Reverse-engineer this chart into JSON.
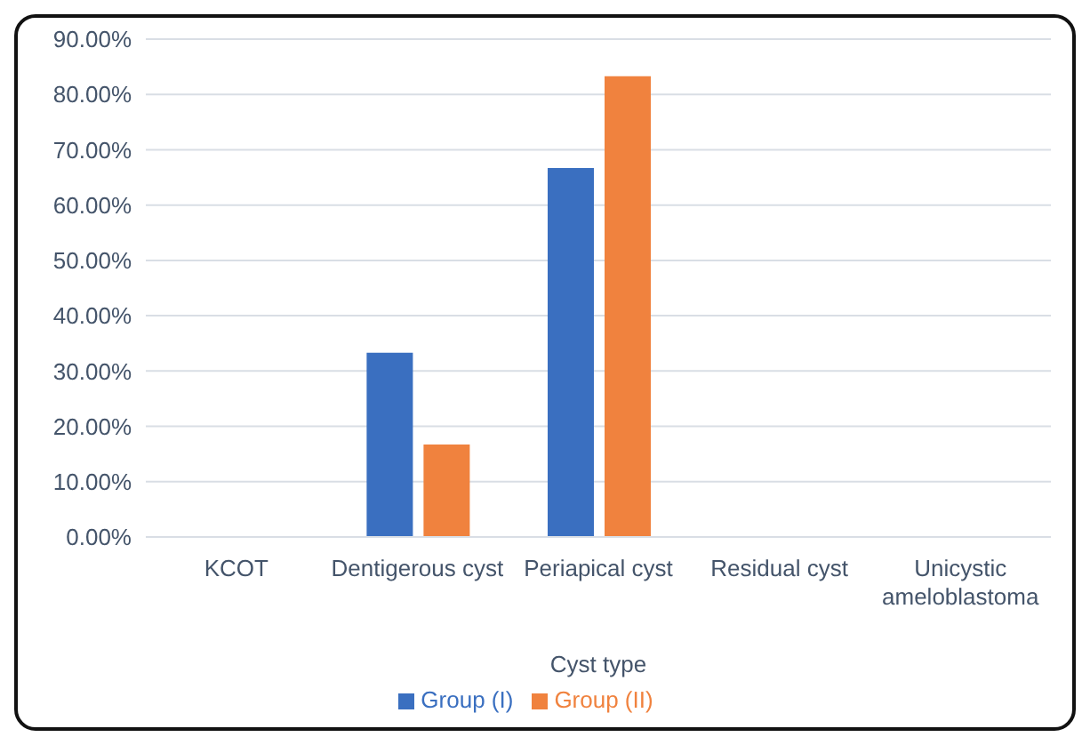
{
  "chart_data": {
    "type": "bar",
    "xlabel": "Cyst type",
    "categories": [
      "KCOT",
      "Dentigerous cyst",
      "Periapical cyst",
      "Residual cyst",
      "Unicystic ameloblastoma"
    ],
    "series": [
      {
        "name": "Group (I)",
        "color": "#3a6fc0",
        "values": [
          0,
          33.3,
          66.7,
          0,
          0
        ]
      },
      {
        "name": "Group (II)",
        "color": "#f0823e",
        "values": [
          0,
          16.7,
          83.3,
          0,
          0
        ]
      }
    ],
    "ylim": [
      0,
      90
    ],
    "yticks": [
      {
        "value": 0,
        "label": "0.00%"
      },
      {
        "value": 10,
        "label": "10.00%"
      },
      {
        "value": 20,
        "label": "20.00%"
      },
      {
        "value": 30,
        "label": "30.00%"
      },
      {
        "value": 40,
        "label": "40.00%"
      },
      {
        "value": 50,
        "label": "50.00%"
      },
      {
        "value": 60,
        "label": "60.00%"
      },
      {
        "value": 70,
        "label": "70.00%"
      },
      {
        "value": 80,
        "label": "80.00%"
      },
      {
        "value": 90,
        "label": "90.00%"
      }
    ],
    "grid": "y",
    "legend": "bottom"
  }
}
